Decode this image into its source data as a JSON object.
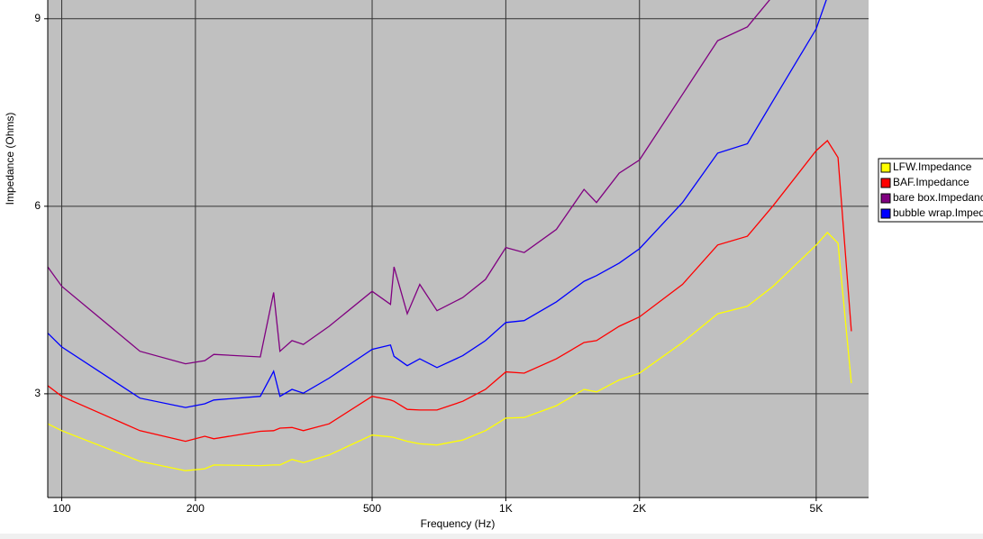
{
  "chart_data": {
    "type": "line",
    "x_label": "Frequency (Hz)",
    "y_label": "Impedance (Ohms)",
    "log_x": true,
    "grid": true,
    "legend": "right",
    "background": "#c0c0c0",
    "xlim": [
      93,
      6560
    ],
    "ylim": [
      1.34,
      9.3
    ],
    "xticks": [
      100,
      200,
      500,
      {
        "value": 1000,
        "label": "1K"
      },
      {
        "value": 2000,
        "label": "2K"
      },
      {
        "value": 5000,
        "label": "5K"
      }
    ],
    "yticks": [
      3,
      6,
      9
    ],
    "x": [
      93,
      100,
      150,
      190,
      210,
      220,
      280,
      300,
      310,
      330,
      350,
      400,
      500,
      550,
      560,
      600,
      640,
      700,
      800,
      900,
      1000,
      1100,
      1300,
      1500,
      1600,
      1800,
      2000,
      2500,
      3000,
      3500,
      4000,
      5000,
      5300,
      5600,
      6000
    ],
    "series": [
      {
        "name": "LFW.Impedance",
        "color": "#ffff00",
        "values": [
          2.52,
          2.41,
          1.92,
          1.77,
          1.8,
          1.86,
          1.85,
          1.86,
          1.86,
          1.95,
          1.9,
          2.02,
          2.34,
          2.31,
          2.3,
          2.24,
          2.2,
          2.18,
          2.26,
          2.41,
          2.61,
          2.62,
          2.81,
          3.07,
          3.03,
          3.22,
          3.33,
          3.82,
          4.28,
          4.4,
          4.72,
          5.38,
          5.58,
          5.41,
          3.17
        ]
      },
      {
        "name": "BAF.Impedance",
        "color": "#ff0000",
        "values": [
          3.13,
          2.96,
          2.41,
          2.24,
          2.32,
          2.28,
          2.4,
          2.41,
          2.45,
          2.46,
          2.41,
          2.52,
          2.96,
          2.9,
          2.88,
          2.75,
          2.74,
          2.74,
          2.88,
          3.07,
          3.35,
          3.33,
          3.56,
          3.82,
          3.85,
          4.08,
          4.23,
          4.75,
          5.38,
          5.52,
          6.01,
          6.89,
          7.05,
          6.78,
          4.0
        ]
      },
      {
        "name": "bare box.Impedance",
        "color": "#800080",
        "values": [
          5.03,
          4.72,
          3.68,
          3.48,
          3.53,
          3.63,
          3.59,
          4.62,
          3.68,
          3.85,
          3.79,
          4.08,
          4.64,
          4.43,
          5.03,
          4.28,
          4.75,
          4.33,
          4.54,
          4.83,
          5.34,
          5.26,
          5.63,
          6.27,
          6.06,
          6.53,
          6.74,
          7.79,
          8.65,
          8.87,
          9.37,
          null,
          null,
          null,
          null
        ]
      },
      {
        "name": "bubble wrap.Impedance",
        "color": "#0000ff",
        "values": [
          3.97,
          3.75,
          2.93,
          2.78,
          2.84,
          2.9,
          2.96,
          3.36,
          2.96,
          3.07,
          3.01,
          3.25,
          3.71,
          3.78,
          3.6,
          3.45,
          3.56,
          3.42,
          3.61,
          3.85,
          4.14,
          4.17,
          4.47,
          4.8,
          4.89,
          5.09,
          5.32,
          6.06,
          6.85,
          7.0,
          7.69,
          8.84,
          9.35,
          null,
          null
        ]
      }
    ]
  }
}
